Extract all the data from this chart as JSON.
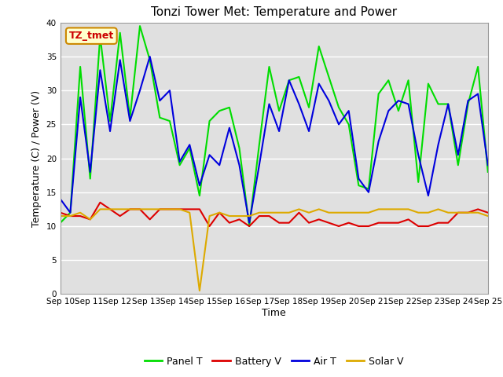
{
  "title": "Tonzi Tower Met: Temperature and Power",
  "xlabel": "Time",
  "ylabel": "Temperature (C) / Power (V)",
  "ylim": [
    0,
    40
  ],
  "yticks": [
    0,
    5,
    10,
    15,
    20,
    25,
    30,
    35,
    40
  ],
  "x_labels": [
    "Sep 10",
    "Sep 11",
    "Sep 12",
    "Sep 13",
    "Sep 14",
    "Sep 15",
    "Sep 16",
    "Sep 17",
    "Sep 18",
    "Sep 19",
    "Sep 20",
    "Sep 21",
    "Sep 22",
    "Sep 23",
    "Sep 24",
    "Sep 25"
  ],
  "background_color": "#e0e0e0",
  "plot_bg_color": "#e0e0e0",
  "fig_bg_color": "#ffffff",
  "grid_color": "#ffffff",
  "annotation_text": "TZ_tmet",
  "annotation_color": "#cc0000",
  "annotation_bg": "#ffffcc",
  "annotation_border": "#cc8800",
  "panel_T": [
    10.5,
    12.0,
    33.5,
    17.0,
    38.0,
    25.5,
    38.5,
    26.0,
    39.5,
    34.5,
    26.0,
    25.5,
    19.0,
    21.5,
    14.5,
    25.5,
    27.0,
    27.5,
    21.5,
    10.0,
    22.0,
    33.5,
    27.0,
    31.5,
    32.0,
    27.5,
    36.5,
    32.0,
    27.5,
    25.0,
    16.0,
    15.5,
    29.5,
    31.5,
    27.0,
    31.5,
    16.5,
    31.0,
    28.0,
    28.0,
    19.0,
    28.0,
    33.5,
    18.0
  ],
  "battery_V": [
    12.0,
    11.5,
    11.5,
    11.0,
    13.5,
    12.5,
    11.5,
    12.5,
    12.5,
    11.0,
    12.5,
    12.5,
    12.5,
    12.5,
    12.5,
    10.0,
    12.0,
    10.5,
    11.0,
    10.0,
    11.5,
    11.5,
    10.5,
    10.5,
    12.0,
    10.5,
    11.0,
    10.5,
    10.0,
    10.5,
    10.0,
    10.0,
    10.5,
    10.5,
    10.5,
    11.0,
    10.0,
    10.0,
    10.5,
    10.5,
    12.0,
    12.0,
    12.5,
    12.0
  ],
  "air_T": [
    14.0,
    12.0,
    29.0,
    18.0,
    33.0,
    24.0,
    34.5,
    25.5,
    30.0,
    35.0,
    28.5,
    30.0,
    19.5,
    22.0,
    16.0,
    20.5,
    19.0,
    24.5,
    19.0,
    10.5,
    19.0,
    28.0,
    24.0,
    31.5,
    28.0,
    24.0,
    31.0,
    28.5,
    25.0,
    27.0,
    17.0,
    15.0,
    22.5,
    27.0,
    28.5,
    28.0,
    20.5,
    14.5,
    22.0,
    28.0,
    20.5,
    28.5,
    29.5,
    19.0
  ],
  "solar_V": [
    11.5,
    11.5,
    12.0,
    11.0,
    12.5,
    12.5,
    12.5,
    12.5,
    12.5,
    12.5,
    12.5,
    12.5,
    12.5,
    12.0,
    0.5,
    11.5,
    12.0,
    11.5,
    11.5,
    11.5,
    12.0,
    12.0,
    12.0,
    12.0,
    12.5,
    12.0,
    12.5,
    12.0,
    12.0,
    12.0,
    12.0,
    12.0,
    12.5,
    12.5,
    12.5,
    12.5,
    12.0,
    12.0,
    12.5,
    12.0,
    12.0,
    12.0,
    12.0,
    11.5
  ],
  "panel_T_color": "#00dd00",
  "battery_V_color": "#dd0000",
  "air_T_color": "#0000dd",
  "solar_V_color": "#ddaa00",
  "line_width": 1.5,
  "title_fontsize": 11,
  "label_fontsize": 9,
  "tick_fontsize": 7.5,
  "legend_fontsize": 9
}
